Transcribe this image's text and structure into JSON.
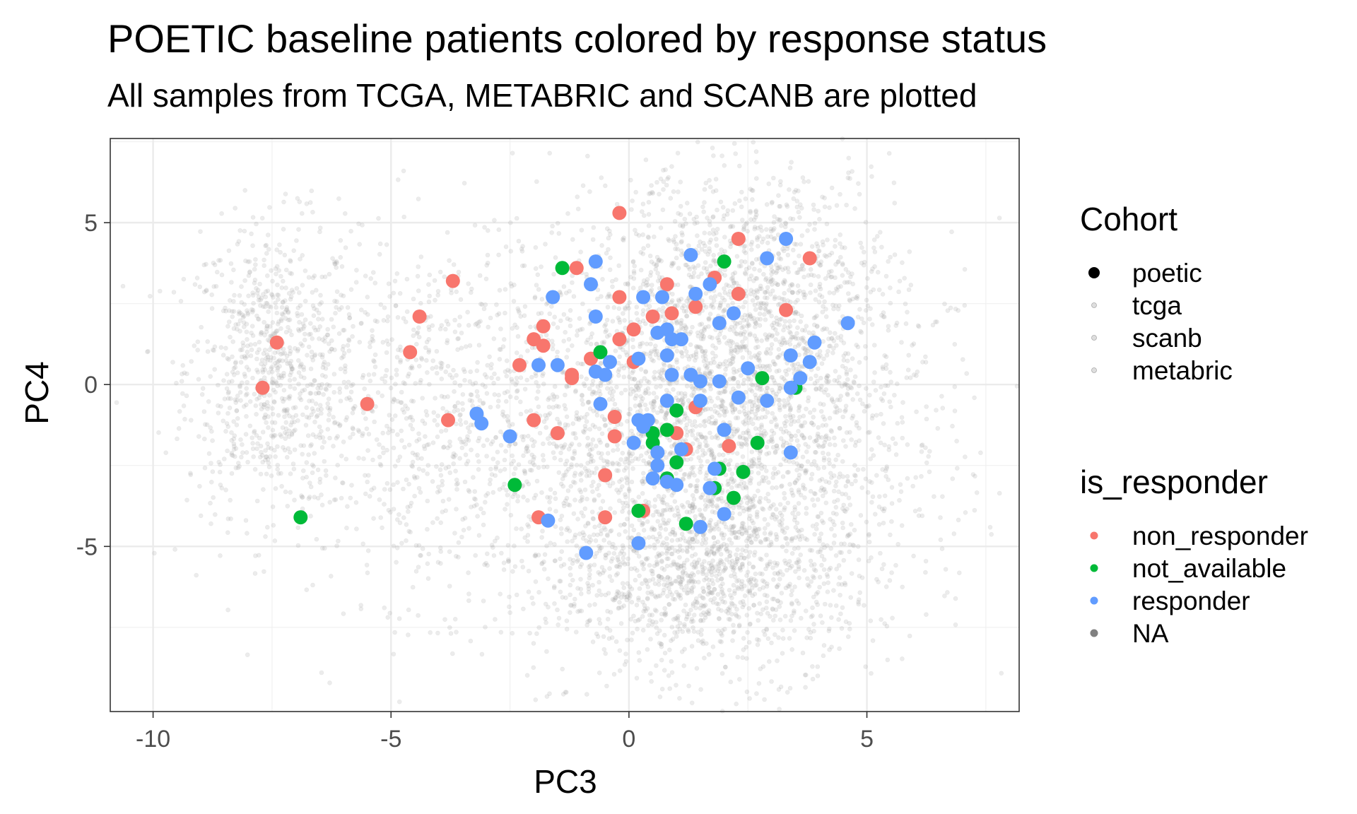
{
  "chart_data": {
    "type": "scatter",
    "title": "POETIC baseline patients colored by response status",
    "subtitle": "All samples from TCGA, METABRIC and SCANB are plotted",
    "xlabel": "PC3",
    "ylabel": "PC4",
    "xlim": [
      -10.9,
      8.2
    ],
    "ylim": [
      -10.1,
      7.6
    ],
    "xticks": [
      -10,
      -5,
      0,
      5
    ],
    "yticks": [
      5,
      0,
      -5
    ],
    "xtick_labels": [
      "-10",
      "-5",
      "0",
      "5"
    ],
    "ytick_labels": [
      "5",
      "0",
      "-5"
    ],
    "grid": true,
    "legend_position": "right",
    "legends": [
      {
        "title": "Cohort",
        "entries": [
          {
            "label": "poetic",
            "color": "#000000"
          },
          {
            "label": "tcga",
            "color": "#c8c8c8"
          },
          {
            "label": "scanb",
            "color": "#c8c8c8"
          },
          {
            "label": "metabric",
            "color": "#c8c8c8"
          }
        ]
      },
      {
        "title": "is_responder",
        "entries": [
          {
            "label": "non_responder",
            "color": "#F8766D"
          },
          {
            "label": "not_available",
            "color": "#00BA38"
          },
          {
            "label": "responder",
            "color": "#619CFF"
          },
          {
            "label": "NA",
            "color": "#808080"
          }
        ]
      }
    ],
    "background_cloud": {
      "cohorts": [
        "tcga",
        "scanb",
        "metabric"
      ],
      "color": "#a8a8a8",
      "clusters": [
        {
          "center": [
            -7.5,
            0.5
          ],
          "sd": [
            0.9,
            2.2
          ],
          "n": 800
        },
        {
          "center": [
            -4.0,
            -1.0
          ],
          "sd": [
            1.8,
            2.8
          ],
          "n": 900
        },
        {
          "center": [
            1.6,
            -2.0
          ],
          "sd": [
            2.2,
            3.2
          ],
          "n": 2800
        },
        {
          "center": [
            2.5,
            2.5
          ],
          "sd": [
            1.6,
            2.2
          ],
          "n": 1100
        },
        {
          "center": [
            1.5,
            -6.0
          ],
          "sd": [
            1.5,
            1.2
          ],
          "n": 700
        }
      ]
    },
    "series": [
      {
        "name": "non_responder",
        "color": "#F8766D",
        "x": [
          -0.2,
          2.3,
          3.8,
          -1.1,
          1.8,
          0.8,
          -3.7,
          2.3,
          3.3,
          -0.2,
          -4.4,
          1.4,
          0.9,
          0.5,
          0.1,
          -1.8,
          -7.4,
          -2.0,
          -1.8,
          -4.6,
          -0.8,
          -0.2,
          -2.3,
          -1.2,
          -1.2,
          0.1,
          -7.7,
          -5.5,
          1.4,
          -0.3,
          -3.8,
          -2.0,
          -1.5,
          1.0,
          -0.3,
          2.1,
          1.2,
          -0.5,
          -1.9,
          -0.5,
          0.3
        ],
        "y": [
          5.3,
          4.5,
          3.9,
          3.6,
          3.3,
          3.1,
          3.2,
          2.8,
          2.3,
          2.7,
          2.1,
          2.4,
          2.2,
          2.1,
          1.7,
          1.8,
          1.3,
          1.4,
          1.2,
          1.0,
          0.8,
          1.4,
          0.6,
          0.3,
          0.2,
          0.7,
          -0.1,
          -0.6,
          -0.7,
          -1.0,
          -1.1,
          -1.1,
          -1.5,
          -1.5,
          -1.6,
          -1.9,
          -2.0,
          -2.8,
          -4.1,
          -4.1,
          -3.9
        ]
      },
      {
        "name": "not_available",
        "color": "#00BA38",
        "x": [
          -1.4,
          2.0,
          -0.6,
          2.8,
          3.5,
          1.0,
          0.5,
          0.8,
          0.5,
          2.7,
          1.0,
          1.9,
          2.4,
          0.8,
          -2.4,
          1.8,
          2.2,
          -6.9,
          0.2,
          1.2
        ],
        "y": [
          3.6,
          3.8,
          1.0,
          0.2,
          -0.1,
          -0.8,
          -1.5,
          -1.4,
          -1.8,
          -1.8,
          -2.4,
          -2.6,
          -2.7,
          -2.9,
          -3.1,
          -3.2,
          -3.5,
          -4.1,
          -3.9,
          -4.3
        ]
      },
      {
        "name": "responder",
        "color": "#619CFF",
        "x": [
          3.3,
          1.3,
          -0.7,
          2.9,
          0.3,
          -1.6,
          -0.8,
          1.7,
          1.4,
          2.2,
          0.7,
          -0.7,
          0.6,
          4.6,
          1.9,
          0.8,
          0.9,
          3.9,
          1.1,
          0.8,
          -0.4,
          3.4,
          3.8,
          -1.9,
          -1.5,
          -0.7,
          -0.5,
          0.2,
          0.9,
          2.5,
          1.3,
          1.5,
          1.9,
          3.6,
          3.4,
          0.8,
          2.3,
          1.5,
          2.9,
          -0.6,
          -3.1,
          -3.2,
          0.2,
          0.4,
          -2.5,
          0.1,
          2.0,
          0.3,
          0.6,
          1.1,
          1.8,
          0.6,
          0.8,
          0.5,
          1.7,
          1.0,
          -1.7,
          0.2,
          2.0,
          -0.9,
          1.5,
          3.4
        ],
        "y": [
          4.5,
          4.0,
          3.8,
          3.9,
          2.7,
          2.7,
          3.1,
          3.1,
          2.8,
          2.2,
          2.7,
          2.1,
          1.6,
          1.9,
          1.9,
          1.7,
          1.4,
          1.3,
          1.4,
          0.9,
          0.7,
          0.9,
          0.7,
          0.6,
          0.6,
          0.4,
          0.3,
          0.8,
          0.3,
          0.5,
          0.3,
          0.1,
          0.1,
          0.2,
          -0.1,
          -0.5,
          -0.4,
          -0.5,
          -0.5,
          -0.6,
          -1.2,
          -0.9,
          -1.1,
          -1.1,
          -1.6,
          -1.8,
          -1.4,
          -1.3,
          -2.1,
          -2.0,
          -2.6,
          -2.5,
          -3.0,
          -2.9,
          -3.2,
          -3.1,
          -4.2,
          -4.9,
          -4.0,
          -5.2,
          -4.4,
          -2.1
        ]
      }
    ]
  }
}
